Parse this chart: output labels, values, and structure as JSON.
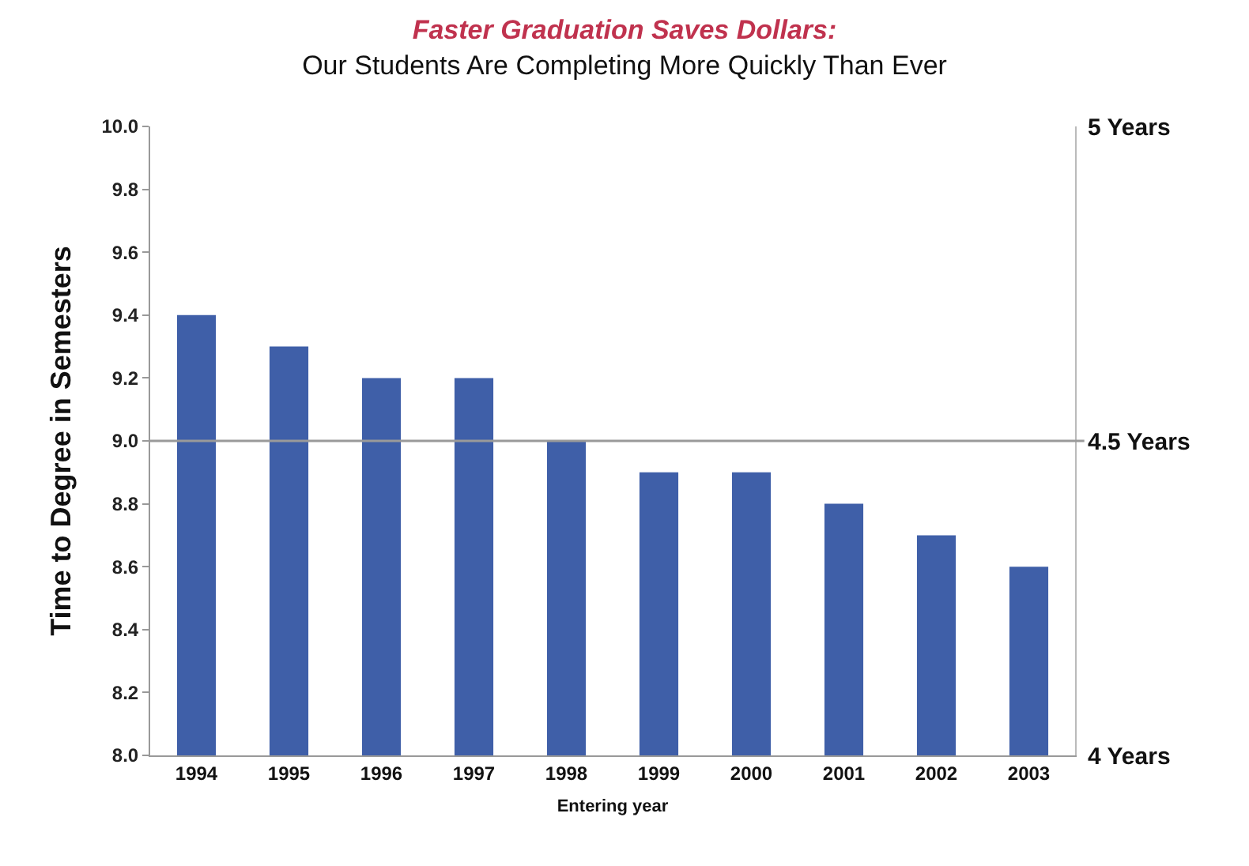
{
  "chart_data": {
    "type": "bar",
    "title": "Faster Graduation Saves Dollars:",
    "subtitle": "Our Students Are Completing More Quickly Than Ever",
    "xlabel": "Entering year",
    "ylabel": "Time to Degree in Semesters",
    "categories": [
      "1994",
      "1995",
      "1996",
      "1997",
      "1998",
      "1999",
      "2000",
      "2001",
      "2002",
      "2003"
    ],
    "values": [
      9.4,
      9.3,
      9.2,
      9.2,
      9.0,
      8.9,
      8.9,
      8.8,
      8.7,
      8.6
    ],
    "color": "#3f5fa8",
    "ylim": [
      8.0,
      10.0
    ],
    "yticks": [
      {
        "value": 8.0,
        "label": "8.0"
      },
      {
        "value": 8.2,
        "label": "8.2"
      },
      {
        "value": 8.4,
        "label": "8.4"
      },
      {
        "value": 8.6,
        "label": "8.6"
      },
      {
        "value": 8.8,
        "label": "8.8"
      },
      {
        "value": 9.0,
        "label": "9.0"
      },
      {
        "value": 9.2,
        "label": "9.2"
      },
      {
        "value": 9.4,
        "label": "9.4"
      },
      {
        "value": 9.6,
        "label": "9.6"
      },
      {
        "value": 9.8,
        "label": "9.8"
      },
      {
        "value": 10.0,
        "label": "10.0"
      }
    ],
    "y2lim": [
      4,
      5
    ],
    "y2ticks": [
      {
        "value": 4,
        "label": "4 Years"
      },
      {
        "value": 4.5,
        "label": "4.5 Years"
      },
      {
        "value": 5,
        "label": "5 Years"
      }
    ],
    "ref_lines": [
      {
        "axis": "y",
        "value": 9.0,
        "color": "#9a9a9a"
      }
    ]
  }
}
